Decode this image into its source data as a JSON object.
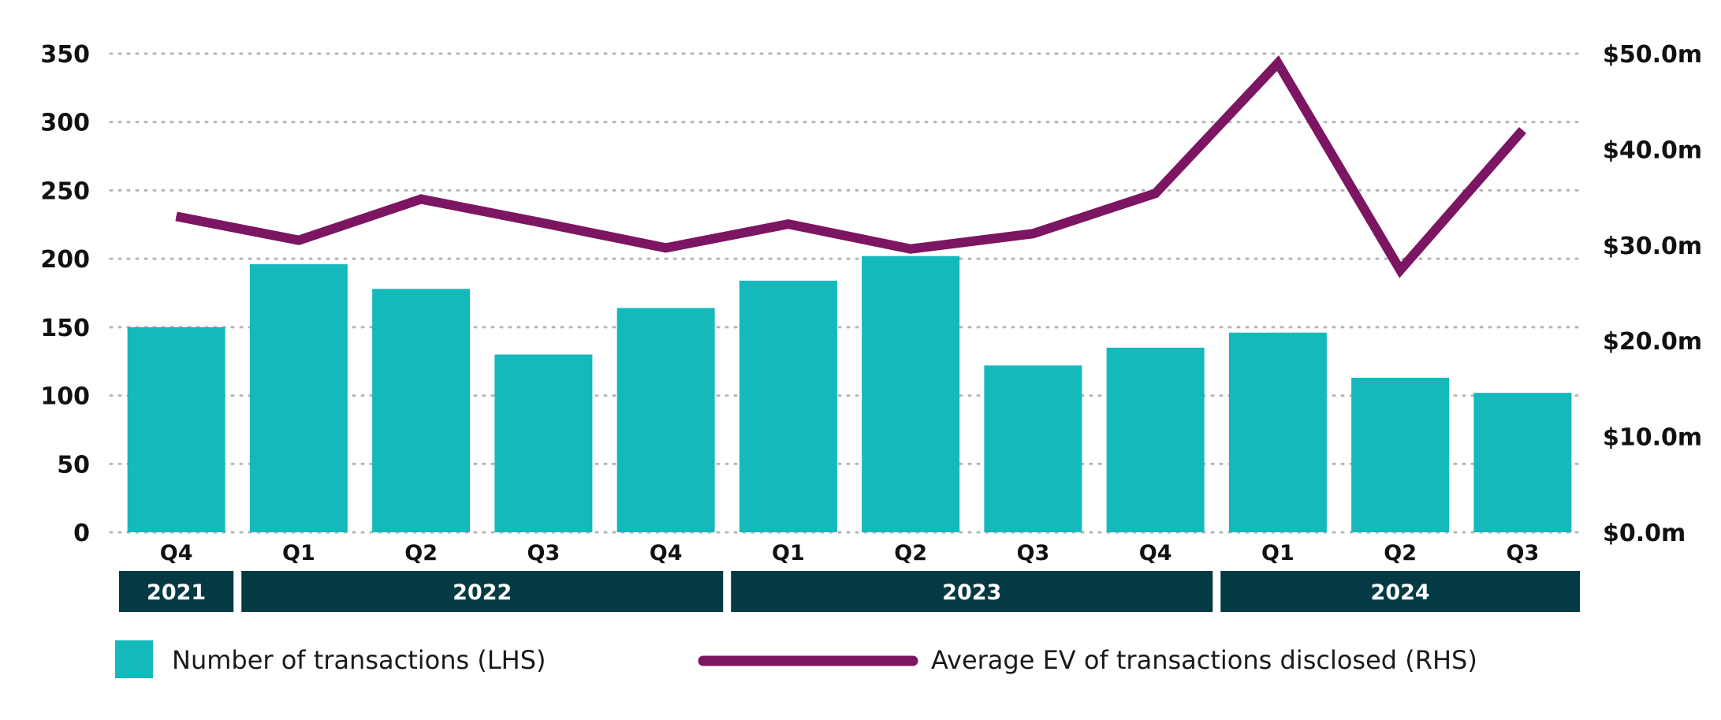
{
  "chart_data": {
    "type": "bar",
    "categories": [
      "Q4",
      "Q1",
      "Q2",
      "Q3",
      "Q4",
      "Q1",
      "Q2",
      "Q3",
      "Q4",
      "Q1",
      "Q2",
      "Q3"
    ],
    "year_groups": [
      {
        "label": "2021",
        "from": 0,
        "to": 0
      },
      {
        "label": "2022",
        "from": 1,
        "to": 4
      },
      {
        "label": "2023",
        "from": 5,
        "to": 8
      },
      {
        "label": "2024",
        "from": 9,
        "to": 11
      }
    ],
    "series": [
      {
        "name": "Number of transactions (LHS)",
        "type": "bar",
        "axis": "left",
        "color": "#14b9bb",
        "values": [
          150,
          196,
          178,
          130,
          164,
          184,
          202,
          122,
          135,
          146,
          113,
          102
        ]
      },
      {
        "name": "Average EV of transactions disclosed (RHS)",
        "type": "line",
        "axis": "right",
        "color": "#7c1562",
        "values": [
          33.0,
          30.5,
          34.8,
          32.3,
          29.7,
          32.2,
          29.6,
          31.2,
          35.4,
          49.0,
          27.4,
          42.0
        ]
      }
    ],
    "left_axis": {
      "ylim": [
        0,
        350
      ],
      "ticks": [
        "0",
        "50",
        "100",
        "150",
        "200",
        "250",
        "300",
        "350"
      ]
    },
    "right_axis": {
      "ylim": [
        0,
        50
      ],
      "ticks": [
        "$0.0m",
        "$10.0m",
        "$20.0m",
        "$30.0m",
        "$40.0m",
        "$50.0m"
      ]
    },
    "grid": "dotted horizontal",
    "year_band_color": "#033a44",
    "legend_position": "bottom"
  }
}
